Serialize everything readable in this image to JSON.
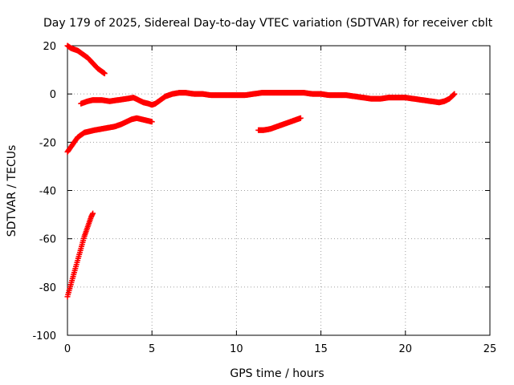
{
  "chart_data": {
    "type": "scatter",
    "title": "Day 179 of 2025, Sidereal Day-to-day VTEC variation (SDTVAR) for receiver cblt",
    "xlabel": "GPS time / hours",
    "ylabel": "SDTVAR / TECUs",
    "xlim": [
      0,
      25
    ],
    "ylim": [
      -100,
      20
    ],
    "x_ticks": [
      0,
      5,
      10,
      15,
      20,
      25
    ],
    "y_ticks": [
      -100,
      -80,
      -60,
      -40,
      -20,
      0,
      20
    ],
    "x_tick_labels": [
      "0",
      "5",
      "10",
      "15",
      "20",
      "25"
    ],
    "y_tick_labels": [
      "-100",
      "-80",
      "-60",
      "-40",
      "-20",
      "0",
      "20"
    ],
    "grid": true,
    "legend": "none",
    "marker": "plus",
    "series_color": "#ff0000",
    "series": [
      {
        "x": [
          0.0,
          0.2,
          0.4,
          0.6,
          0.8,
          1.0,
          1.2,
          1.4,
          1.6,
          1.8,
          2.0,
          2.2
        ],
        "y": [
          20,
          19,
          18.5,
          18,
          17,
          16,
          15,
          13.5,
          12,
          10.5,
          9.5,
          8.5
        ]
      },
      {
        "x": [
          0.0,
          0.1,
          0.2,
          0.3,
          0.4,
          0.5,
          0.6,
          0.7,
          0.8,
          0.9,
          1.0,
          1.1,
          1.2,
          1.3,
          1.4,
          1.5
        ],
        "y": [
          -84,
          -81.5,
          -79,
          -76.5,
          -74,
          -71.5,
          -69,
          -66.5,
          -64,
          -61.5,
          -59,
          -57,
          -55,
          -53,
          -51,
          -49.5
        ]
      },
      {
        "x": [
          0.0,
          0.2,
          0.4,
          0.6,
          0.8,
          1.0,
          1.3,
          1.6,
          2.0,
          2.4,
          2.8,
          3.2,
          3.5,
          3.8,
          4.1,
          4.4,
          4.7,
          5.0
        ],
        "y": [
          -24,
          -22,
          -20,
          -18,
          -17,
          -16,
          -15.5,
          -15,
          -14.5,
          -14,
          -13.5,
          -12.5,
          -11.5,
          -10.5,
          -10,
          -10.5,
          -11,
          -11.5
        ]
      },
      {
        "x": [
          0.8,
          1.0,
          1.2,
          1.5,
          2.0,
          2.5,
          3.0,
          3.5,
          3.9,
          4.2,
          4.5,
          4.8,
          5.0,
          5.2,
          5.5,
          5.8,
          6.2,
          6.6,
          7.0,
          7.5,
          8.0,
          8.5,
          9.0,
          9.5,
          10.0,
          10.5,
          11.0,
          11.5,
          12.0,
          12.5,
          13.0,
          13.5,
          14.0,
          14.5,
          15.0,
          15.5,
          16.0,
          16.5,
          17.0,
          17.5,
          18.0,
          18.5,
          19.0,
          19.5,
          20.0,
          20.5,
          21.0,
          21.5,
          22.0,
          22.3,
          22.6,
          22.9
        ],
        "y": [
          -4,
          -3.5,
          -3,
          -2.5,
          -2.5,
          -3,
          -2.5,
          -2,
          -1.5,
          -2.5,
          -3.5,
          -4,
          -4.5,
          -4,
          -2.5,
          -1,
          0,
          0.5,
          0.5,
          0,
          0,
          -0.5,
          -0.5,
          -0.5,
          -0.5,
          -0.5,
          0,
          0.5,
          0.5,
          0.5,
          0.5,
          0.5,
          0.5,
          0,
          0,
          -0.5,
          -0.5,
          -0.5,
          -1,
          -1.5,
          -2,
          -2,
          -1.5,
          -1.5,
          -1.5,
          -2,
          -2.5,
          -3,
          -3.5,
          -3,
          -2,
          0
        ]
      },
      {
        "x": [
          11.3,
          11.6,
          12.0,
          12.4,
          12.8,
          13.2,
          13.6,
          13.8
        ],
        "y": [
          -15,
          -15,
          -14.5,
          -13.5,
          -12.5,
          -11.5,
          -10.5,
          -10
        ]
      }
    ]
  }
}
